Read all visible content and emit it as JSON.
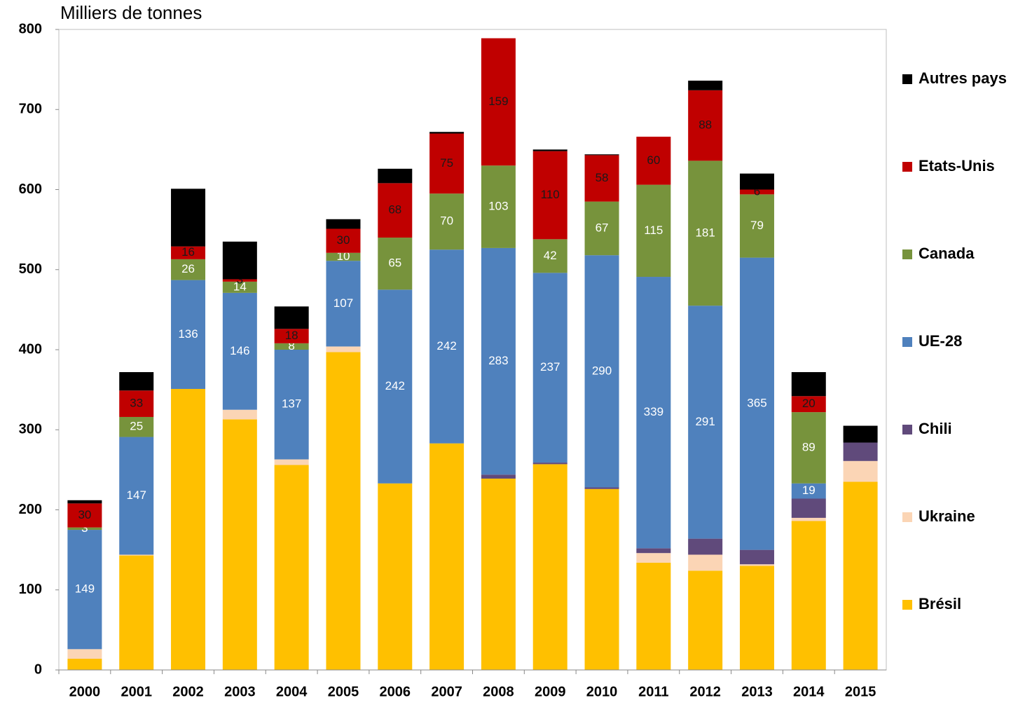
{
  "chart_data": {
    "type": "stacked_bar",
    "title": "Milliers de tonnes",
    "categories": [
      "2000",
      "2001",
      "2002",
      "2003",
      "2004",
      "2005",
      "2006",
      "2007",
      "2008",
      "2009",
      "2010",
      "2011",
      "2012",
      "2013",
      "2014",
      "2015"
    ],
    "ylim": [
      0,
      800
    ],
    "yticks": [
      0,
      100,
      200,
      300,
      400,
      500,
      600,
      700,
      800
    ],
    "legend": "right",
    "series": [
      {
        "name": "Brésil",
        "color": "#ffc000",
        "values": [
          14,
          143,
          351,
          313,
          256,
          397,
          233,
          283,
          239,
          257,
          226,
          134,
          124,
          130,
          186,
          235
        ]
      },
      {
        "name": "Ukraine",
        "color": "#fbd5b5",
        "values": [
          12,
          1,
          0,
          12,
          7,
          7,
          0,
          0,
          0,
          0,
          0,
          12,
          20,
          2,
          4,
          26
        ]
      },
      {
        "name": "Chili",
        "color": "#604a7b",
        "values": [
          0,
          0,
          0,
          0,
          0,
          0,
          0,
          0,
          5,
          2,
          2,
          6,
          20,
          18,
          24,
          23
        ]
      },
      {
        "name": "UE-28",
        "color": "#4f81bd",
        "label_color": "#ffffff",
        "values": [
          149,
          147,
          136,
          146,
          137,
          107,
          242,
          242,
          283,
          237,
          290,
          339,
          291,
          365,
          19,
          0
        ],
        "value_labels": [
          "149",
          "147",
          "136",
          "146",
          "137",
          "107",
          "242",
          "242",
          "283",
          "237",
          "290",
          "339",
          "291",
          "365",
          "19",
          null
        ]
      },
      {
        "name": "Canada",
        "color": "#77933c",
        "label_color": "#ffffff",
        "values": [
          3,
          25,
          26,
          14,
          8,
          10,
          65,
          70,
          103,
          42,
          67,
          115,
          181,
          79,
          89,
          0
        ],
        "value_labels": [
          "3",
          "25",
          "26",
          "14",
          "8",
          "10",
          "65",
          "70",
          "103",
          "42",
          "67",
          "115",
          "181",
          "79",
          "89",
          null
        ]
      },
      {
        "name": "Etats-Unis",
        "color": "#c00000",
        "label_color": "#1a1a1a",
        "values": [
          30,
          33,
          16,
          3,
          18,
          30,
          68,
          75,
          159,
          110,
          58,
          60,
          88,
          6,
          20,
          0
        ],
        "value_labels": [
          "30",
          "33",
          "16",
          "3",
          "18",
          "30",
          "68",
          "75",
          "159",
          "110",
          "58",
          "60",
          "88",
          "6",
          "20",
          null
        ]
      },
      {
        "name": "Autres pays",
        "color": "#000000",
        "values": [
          4,
          23,
          72,
          47,
          28,
          12,
          18,
          2,
          0,
          2,
          1,
          0,
          12,
          20,
          30,
          21
        ]
      }
    ]
  }
}
